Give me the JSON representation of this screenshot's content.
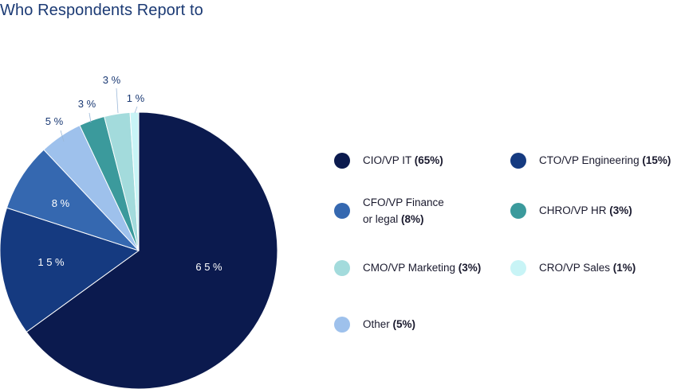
{
  "chart_data": {
    "type": "pie",
    "title": "Who Respondents Report to",
    "slices": [
      {
        "label": "CIO/VP IT",
        "value": 65,
        "pct_label": "65%",
        "data_label": "6 5 %",
        "color": "#0b1a4e"
      },
      {
        "label": "CTO/VP Engineering",
        "value": 15,
        "pct_label": "15%",
        "data_label": "1 5 %",
        "color": "#153a80"
      },
      {
        "label": "CFO/VP Finance or legal",
        "value": 8,
        "pct_label": "8%",
        "data_label": "8 %",
        "color": "#3568b0"
      },
      {
        "label": "Other",
        "value": 5,
        "pct_label": "5%",
        "data_label": "5 %",
        "color": "#9ec1ec"
      },
      {
        "label": "CHRO/VP HR",
        "value": 3,
        "pct_label": "3%",
        "data_label": "3 %",
        "color": "#3b9a9c"
      },
      {
        "label": "CMO/VP Marketing",
        "value": 3,
        "pct_label": "3%",
        "data_label": "3 %",
        "color": "#a3dbdc"
      },
      {
        "label": "CRO/VP Sales",
        "value": 1,
        "pct_label": "1%",
        "data_label": "1 %",
        "color": "#c8f4f6"
      }
    ],
    "legend_placement": "right"
  },
  "legend": [
    {
      "line1": "CIO/VP IT",
      "line2": "",
      "pct": "(65%)",
      "color": "#0b1a4e"
    },
    {
      "line1": "CTO/VP Engineering",
      "line2": "",
      "pct": "(15%)",
      "color": "#153a80"
    },
    {
      "line1": "CFO/VP Finance",
      "line2": "or legal",
      "pct": "(8%)",
      "color": "#3568b0"
    },
    {
      "line1": "CHRO/VP HR",
      "line2": "",
      "pct": "(3%)",
      "color": "#3b9a9c"
    },
    {
      "line1": "CMO/VP Marketing",
      "line2": "",
      "pct": "(3%)",
      "color": "#a3dbdc"
    },
    {
      "line1": "CRO/VP Sales",
      "line2": "",
      "pct": "(1%)",
      "color": "#c8f4f6"
    },
    {
      "line1": "Other",
      "line2": "",
      "pct": "(5%)",
      "color": "#9ec1ec"
    }
  ]
}
